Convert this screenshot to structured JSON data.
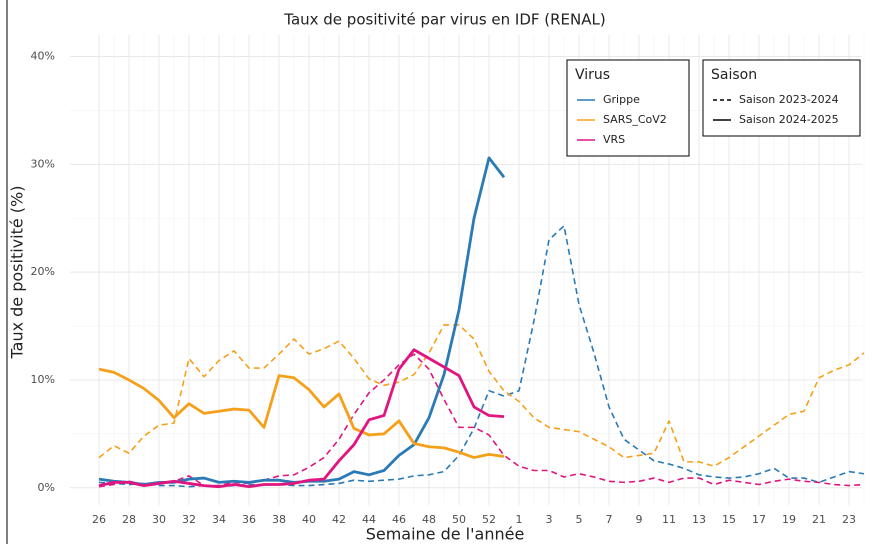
{
  "chart_data": {
    "type": "line",
    "title": "Taux de positivité par virus en IDF (RENAL)",
    "x_label": "Semaine de l'année",
    "y_label": "Taux de positivité (%)",
    "categories": [
      26,
      null,
      28,
      null,
      30,
      null,
      32,
      null,
      34,
      null,
      36,
      null,
      38,
      null,
      40,
      null,
      42,
      null,
      44,
      null,
      46,
      null,
      48,
      null,
      50,
      null,
      52,
      null,
      1,
      null,
      3,
      null,
      5,
      null,
      7,
      null,
      9,
      null,
      11,
      null,
      13,
      null,
      15,
      null,
      17,
      null,
      19,
      null,
      21,
      null,
      23,
      null
    ],
    "ylim": [
      -1.6,
      42
    ],
    "yticks": [
      {
        "value": 0,
        "label": "0%"
      },
      {
        "value": 10,
        "label": "10%"
      },
      {
        "value": 20,
        "label": "20%"
      },
      {
        "value": 30,
        "label": "30%"
      },
      {
        "value": 40,
        "label": "40%"
      }
    ],
    "grid": true,
    "legends": [
      {
        "title": "Virus",
        "entries": [
          {
            "label": "Grippe",
            "color": "#2a7ab6"
          },
          {
            "label": "SARS_CoV2",
            "color": "#f5a01a"
          },
          {
            "label": "VRS",
            "color": "#e0157f"
          }
        ]
      },
      {
        "title": "Saison",
        "entries": [
          {
            "label": "Saison 2023-2024",
            "dashed": true
          },
          {
            "label": "Saison 2024-2025",
            "dashed": false
          }
        ]
      }
    ],
    "series": [
      {
        "virus": "Grippe",
        "season": "Saison 2023-2024",
        "color": "#2a7ab6",
        "dashed": true,
        "values": [
          0.5,
          0.4,
          0.3,
          0.4,
          0.2,
          0.2,
          0.1,
          0.2,
          0.1,
          0.2,
          0.3,
          0.3,
          0.3,
          0.2,
          0.2,
          0.3,
          0.4,
          0.7,
          0.6,
          0.7,
          0.8,
          1.1,
          1.2,
          1.5,
          3.0,
          5.5,
          9.0,
          8.5,
          9.0,
          15.5,
          23,
          24.3,
          17,
          12.5,
          7.5,
          4.5,
          3.5,
          2.5,
          2.2,
          1.8,
          1.2,
          1.0,
          0.9,
          1.0,
          1.3,
          1.8,
          0.9,
          0.9,
          0.5,
          1.0,
          1.5,
          1.3
        ]
      },
      {
        "virus": "SARS_CoV2",
        "season": "Saison 2023-2024",
        "color": "#f5a01a",
        "dashed": true,
        "values": [
          2.8,
          3.9,
          3.2,
          4.8,
          5.8,
          6.0,
          12,
          10.3,
          11.8,
          12.7,
          11.1,
          11.1,
          12.4,
          13.8,
          12.4,
          12.9,
          13.6,
          12.0,
          10.1,
          9.5,
          9.8,
          10.5,
          12.5,
          15.1,
          15.1,
          13.8,
          10.8,
          9.0,
          8.0,
          6.5,
          5.6,
          5.4,
          5.2,
          4.5,
          3.8,
          2.8,
          3.0,
          3.2,
          6.2,
          2.4,
          2.4,
          2.0,
          2.8,
          3.8,
          4.8,
          5.8,
          6.8,
          7.1,
          10.2,
          10.9,
          11.4,
          12.5
        ]
      },
      {
        "virus": "VRS",
        "season": "Saison 2023-2024",
        "color": "#e0157f",
        "dashed": true,
        "values": [
          0.1,
          0.3,
          0.6,
          0.3,
          0.4,
          0.6,
          1.1,
          0.2,
          0.2,
          0.5,
          0.4,
          0.7,
          1.1,
          1.2,
          1.9,
          2.8,
          4.5,
          6.8,
          8.8,
          10.0,
          11.4,
          12.4,
          11.0,
          8.2,
          5.6,
          5.6,
          4.9,
          3.0,
          2.0,
          1.6,
          1.6,
          1.0,
          1.3,
          1.0,
          0.6,
          0.5,
          0.6,
          0.9,
          0.5,
          0.9,
          0.9,
          0.3,
          0.7,
          0.5,
          0.3,
          0.6,
          0.8,
          0.6,
          0.5,
          0.3,
          0.2,
          0.3
        ]
      },
      {
        "virus": "Grippe",
        "season": "Saison 2024-2025",
        "color": "#2a7ab6",
        "dashed": false,
        "values": [
          0.8,
          0.6,
          0.5,
          0.3,
          0.5,
          0.5,
          0.8,
          0.9,
          0.5,
          0.6,
          0.5,
          0.7,
          0.7,
          0.5,
          0.6,
          0.6,
          0.8,
          1.5,
          1.2,
          1.6,
          3.0,
          4.0,
          6.5,
          10.5,
          16.5,
          25,
          30.6,
          28.8,
          null,
          null,
          null,
          null,
          null,
          null,
          null,
          null,
          null,
          null,
          null,
          null,
          null,
          null,
          null,
          null,
          null,
          null,
          null,
          null,
          null,
          null,
          null,
          null
        ]
      },
      {
        "virus": "SARS_CoV2",
        "season": "Saison 2024-2025",
        "color": "#f5a01a",
        "dashed": false,
        "values": [
          11,
          10.7,
          10,
          9.2,
          8.1,
          6.5,
          7.8,
          6.9,
          7.1,
          7.3,
          7.2,
          5.6,
          10.4,
          10.2,
          9.1,
          7.5,
          8.7,
          5.5,
          4.9,
          5.0,
          6.2,
          4.1,
          3.8,
          3.7,
          3.3,
          2.8,
          3.1,
          2.9,
          null,
          null,
          null,
          null,
          null,
          null,
          null,
          null,
          null,
          null,
          null,
          null,
          null,
          null,
          null,
          null,
          null,
          null,
          null,
          null,
          null,
          null,
          null,
          null
        ]
      },
      {
        "virus": "VRS",
        "season": "Saison 2024-2025",
        "color": "#e0157f",
        "dashed": false,
        "values": [
          0.2,
          0.5,
          0.5,
          0.2,
          0.4,
          0.6,
          0.4,
          0.2,
          0.1,
          0.3,
          0.1,
          0.3,
          0.3,
          0.4,
          0.7,
          0.8,
          2.5,
          4.0,
          6.3,
          6.7,
          11,
          12.8,
          12.0,
          11.2,
          10.4,
          7.5,
          6.7,
          6.6,
          null,
          null,
          null,
          null,
          null,
          null,
          null,
          null,
          null,
          null,
          null,
          null,
          null,
          null,
          null,
          null,
          null,
          null,
          null,
          null,
          null,
          null,
          null,
          null
        ]
      }
    ]
  }
}
